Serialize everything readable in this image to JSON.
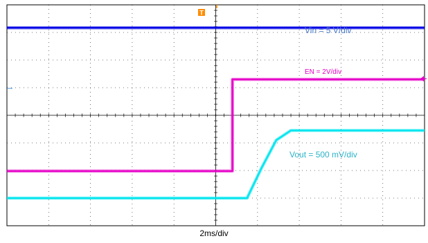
{
  "chart_data": {
    "type": "line",
    "title": "",
    "xlabel": "2ms/div",
    "x_divisions": 10,
    "y_divisions": 8,
    "grid": true,
    "x_unit_per_div_ms": 2,
    "series": [
      {
        "name": "Vin = 5 V/div",
        "color": "#0000e6",
        "points_div": [
          [
            0,
            7.17
          ],
          [
            10,
            7.17
          ]
        ]
      },
      {
        "name": "EN = 2V/div",
        "color": "#e600c8",
        "points_div": [
          [
            0,
            1.98
          ],
          [
            5.4,
            1.98
          ],
          [
            5.4,
            5.3
          ],
          [
            10,
            5.3
          ]
        ]
      },
      {
        "name": "Vout = 500 mV/div",
        "color": "#00e5ee",
        "points_div": [
          [
            0,
            1.0
          ],
          [
            5.75,
            1.0
          ],
          [
            6.1,
            2.1
          ],
          [
            6.45,
            3.1
          ],
          [
            6.8,
            3.45
          ],
          [
            10,
            3.45
          ]
        ]
      }
    ],
    "markers": {
      "trigger": "T",
      "ch_ref_arrow": "left",
      "level_arrow": "right"
    }
  },
  "colors": {
    "trigger": "#ff8c00",
    "grid": "#000000",
    "ref_tick": "#4a90d0"
  }
}
